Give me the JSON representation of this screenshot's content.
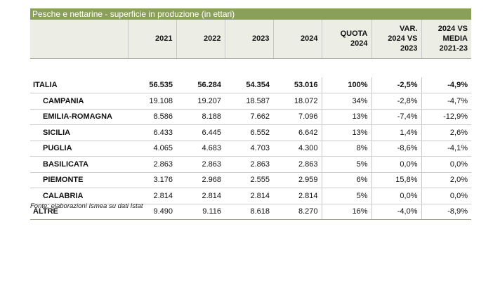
{
  "title": "Pesche e nettarine - superficie in produzione (in ettari)",
  "headers": {
    "region": "",
    "y2021": "2021",
    "y2022": "2022",
    "y2023": "2023",
    "y2024": "2024",
    "quota_line1": "QUOTA",
    "quota_line2": "2024",
    "var_line1": "VAR.",
    "var_line2": "2024 VS",
    "var_line3": "2023",
    "media_line1": "2024 VS",
    "media_line2": "MEDIA",
    "media_line3": "2021-23"
  },
  "rows": [
    {
      "name": "ITALIA",
      "v2021": "56.535",
      "v2022": "56.284",
      "v2023": "54.354",
      "v2024": "53.016",
      "quota": "100%",
      "var": "-2,5%",
      "media": "-4,9%"
    },
    {
      "name": "CAMPANIA",
      "v2021": "19.108",
      "v2022": "19.207",
      "v2023": "18.587",
      "v2024": "18.072",
      "quota": "34%",
      "var": "-2,8%",
      "media": "-4,7%"
    },
    {
      "name": "EMILIA-ROMAGNA",
      "v2021": "8.586",
      "v2022": "8.188",
      "v2023": "7.662",
      "v2024": "7.096",
      "quota": "13%",
      "var": "-7,4%",
      "media": "-12,9%"
    },
    {
      "name": "SICILIA",
      "v2021": "6.433",
      "v2022": "6.445",
      "v2023": "6.552",
      "v2024": "6.642",
      "quota": "13%",
      "var": "1,4%",
      "media": "2,6%"
    },
    {
      "name": "PUGLIA",
      "v2021": "4.065",
      "v2022": "4.683",
      "v2023": "4.703",
      "v2024": "4.300",
      "quota": "8%",
      "var": "-8,6%",
      "media": "-4,1%"
    },
    {
      "name": "BASILICATA",
      "v2021": "2.863",
      "v2022": "2.863",
      "v2023": "2.863",
      "v2024": "2.863",
      "quota": "5%",
      "var": "0,0%",
      "media": "0,0%"
    },
    {
      "name": "PIEMONTE",
      "v2021": "3.176",
      "v2022": "2.968",
      "v2023": "2.555",
      "v2024": "2.959",
      "quota": "6%",
      "var": "15,8%",
      "media": "2,0%"
    },
    {
      "name": "CALABRIA",
      "v2021": "2.814",
      "v2022": "2.814",
      "v2023": "2.814",
      "v2024": "2.814",
      "quota": "5%",
      "var": "0,0%",
      "media": "0,0%"
    },
    {
      "name": "ALTRE",
      "v2021": "9.490",
      "v2022": "9.116",
      "v2023": "8.618",
      "v2024": "8.270",
      "quota": "16%",
      "var": "-4,0%",
      "media": "-8,9%"
    }
  ],
  "source": "Fonte: elaborazioni Ismea su dati Istat"
}
